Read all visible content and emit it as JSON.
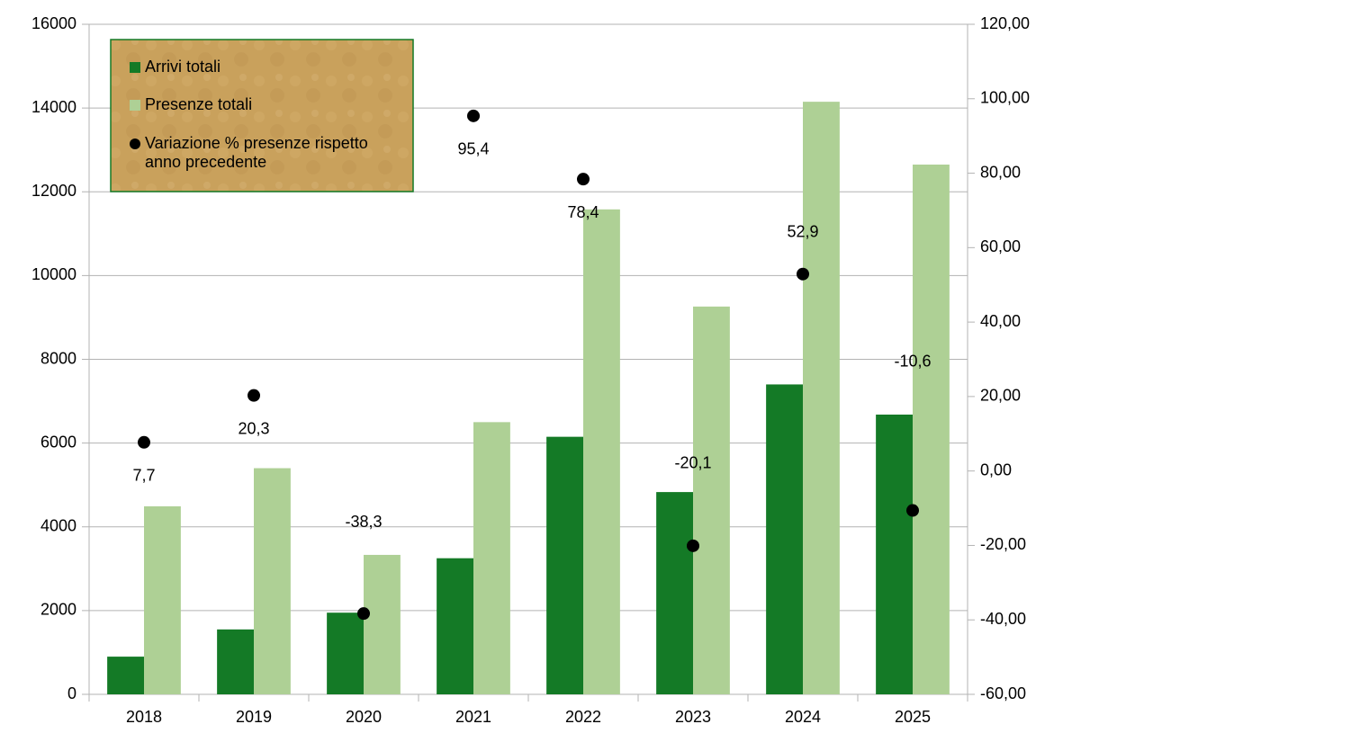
{
  "chart_data": {
    "type": "bar-scatter",
    "categories": [
      "2018",
      "2019",
      "2020",
      "2021",
      "2022",
      "2023",
      "2024",
      "2025"
    ],
    "series": [
      {
        "name": "Arrivi totali",
        "color": "#147a26",
        "type": "bar",
        "values": [
          900,
          1550,
          1950,
          3250,
          6150,
          4830,
          7400,
          6680
        ]
      },
      {
        "name": "Presenze totali",
        "color": "#aed095",
        "type": "bar",
        "values": [
          4490,
          5400,
          3330,
          6500,
          11580,
          9260,
          14150,
          12650
        ]
      },
      {
        "name": "Variazione % presenze rispetto anno precedente",
        "color": "#000000",
        "type": "scatter",
        "axis": "y2",
        "values": [
          7.7,
          20.3,
          -38.3,
          95.4,
          78.4,
          -20.1,
          52.9,
          -10.6
        ],
        "value_labels": [
          "7,7",
          "20,3",
          "-38,3",
          "95,4",
          "78,4",
          "-20,1",
          "52,9",
          "-10,6"
        ]
      }
    ],
    "ylim": [
      0,
      16000
    ],
    "yticks": [
      0,
      2000,
      4000,
      6000,
      8000,
      10000,
      12000,
      14000,
      16000
    ],
    "y2lim": [
      -60,
      120
    ],
    "y2ticks": [
      {
        "value": -60,
        "label": "-60,00"
      },
      {
        "value": -40,
        "label": "-40,00"
      },
      {
        "value": -20,
        "label": "-20,00"
      },
      {
        "value": 0,
        "label": "0,00"
      },
      {
        "value": 20,
        "label": "20,00"
      },
      {
        "value": 40,
        "label": "40,00"
      },
      {
        "value": 60,
        "label": "60,00"
      },
      {
        "value": 80,
        "label": "80,00"
      },
      {
        "value": 100,
        "label": "100,00"
      },
      {
        "value": 120,
        "label": "120,00"
      }
    ],
    "grid": true,
    "legend": "top-left"
  }
}
